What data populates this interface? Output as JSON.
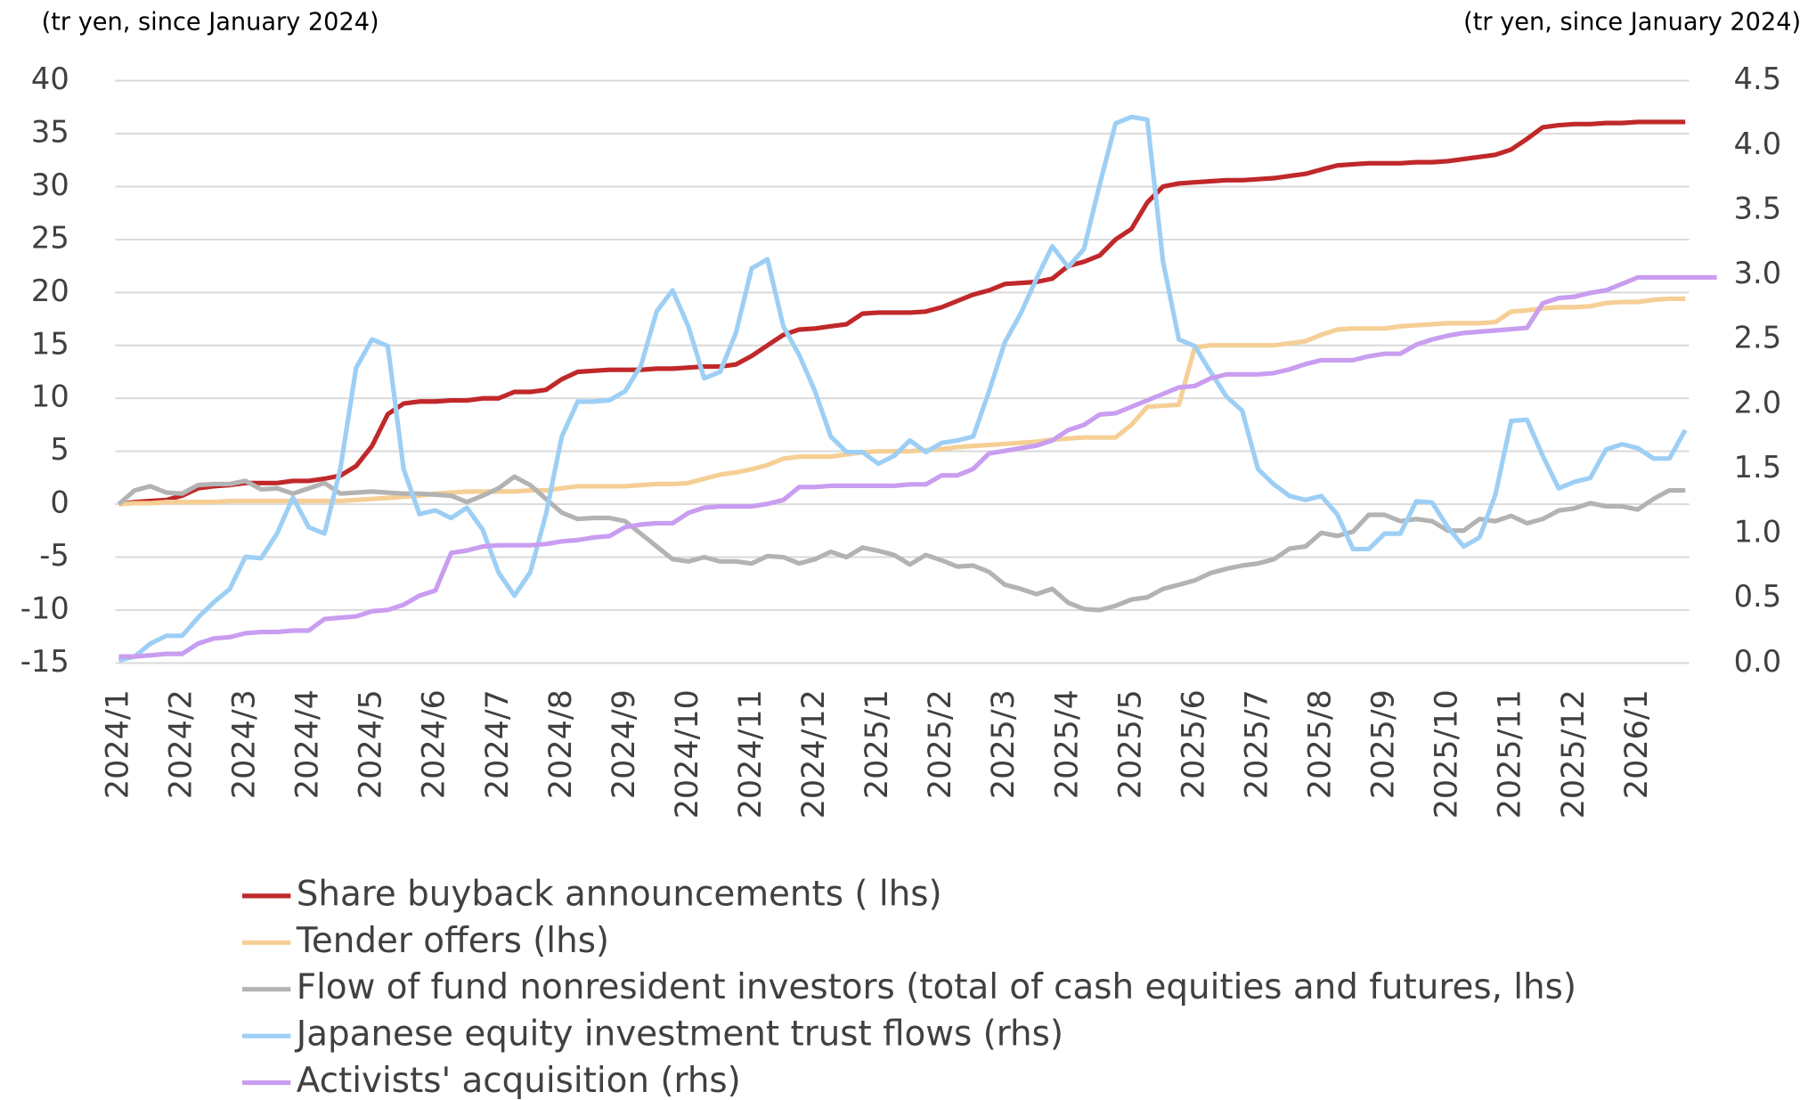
{
  "chart_data": {
    "type": "line",
    "y_label": "(tr yen, since January 2024)",
    "y2_label": "(tr yen, since January 2024)",
    "categories": [
      "2024/1",
      null,
      null,
      null,
      "2024/2",
      null,
      null,
      null,
      "2024/3",
      null,
      null,
      null,
      "2024/4",
      null,
      null,
      null,
      "2024/5",
      null,
      null,
      null,
      "2024/6",
      null,
      null,
      null,
      "2024/7",
      null,
      null,
      null,
      "2024/8",
      null,
      null,
      null,
      "2024/9",
      null,
      null,
      null,
      "2024/10",
      null,
      null,
      null,
      "2024/11",
      null,
      null,
      null,
      "2024/12",
      null,
      null,
      null,
      "2025/1",
      null,
      null,
      null,
      "2025/2",
      null,
      null,
      null,
      "2025/3",
      null,
      null,
      null,
      "2025/4",
      null,
      null,
      null,
      "2025/5",
      null,
      null,
      null,
      "2025/6",
      null,
      null,
      null,
      "2025/7",
      null,
      null,
      null,
      "2025/8",
      null,
      null,
      null,
      "2025/9",
      null,
      null,
      null,
      "2025/10",
      null,
      null,
      null,
      "2025/11",
      null,
      null,
      null,
      "2025/12",
      null,
      null,
      null,
      "2026/1",
      null,
      null,
      null,
      null,
      null
    ],
    "ylim": [
      -15,
      40
    ],
    "yticks": [
      -15,
      -10,
      -5,
      0,
      5,
      10,
      15,
      20,
      25,
      30,
      35,
      40
    ],
    "y2lim": [
      0,
      4.5
    ],
    "y2ticks": [
      {
        "value": 0,
        "label": "0.0"
      },
      0.5,
      {
        "value": 1,
        "label": "1.0"
      },
      1.5,
      {
        "value": 2,
        "label": "2.0"
      },
      2.5,
      {
        "value": 3,
        "label": "3.0"
      },
      3.5,
      {
        "value": 4,
        "label": "4.0"
      },
      4.5
    ],
    "grid": true,
    "series": [
      {
        "name": "Share buyback announcements ( lhs)",
        "color": "#c0282a",
        "values": [
          0,
          0.2,
          0.3,
          0.4,
          0.8,
          1.5,
          1.7,
          1.8,
          2.0,
          2.0,
          2.0,
          2.2,
          2.2,
          2.4,
          2.7,
          3.6,
          5.5,
          8.5,
          9.5,
          9.7,
          9.7,
          9.8,
          9.8,
          10.0,
          10.0,
          10.6,
          10.6,
          10.8,
          11.8,
          12.5,
          12.6,
          12.7,
          12.7,
          12.7,
          12.8,
          12.8,
          12.9,
          13.0,
          13.0,
          13.2,
          14.0,
          15.0,
          16.0,
          16.5,
          16.6,
          16.8,
          17.0,
          18.0,
          18.1,
          18.1,
          18.1,
          18.2,
          18.6,
          19.2,
          19.8,
          20.2,
          20.8,
          20.9,
          21.0,
          21.3,
          22.5,
          22.9,
          23.5,
          25.0,
          26.0,
          28.5,
          30.0,
          30.3,
          30.4,
          30.5,
          30.6,
          30.6,
          30.7,
          30.8,
          31.0,
          31.2,
          31.6,
          32.0,
          32.1,
          32.2,
          32.2,
          32.2,
          32.3,
          32.3,
          32.4,
          32.6,
          32.8,
          33.0,
          33.5,
          34.5,
          35.6,
          35.8,
          35.9,
          35.9,
          36.0,
          36.0,
          36.1,
          36.1,
          36.1,
          36.1,
          null,
          null
        ]
      },
      {
        "name": "Tender offers (lhs)",
        "color": "#f5cf95",
        "values": [
          0,
          0.1,
          0.1,
          0.2,
          0.2,
          0.2,
          0.2,
          0.3,
          0.3,
          0.3,
          0.3,
          0.3,
          0.3,
          0.3,
          0.3,
          0.4,
          0.5,
          0.6,
          0.7,
          0.8,
          1.0,
          1.1,
          1.2,
          1.2,
          1.2,
          1.2,
          1.3,
          1.3,
          1.5,
          1.7,
          1.7,
          1.7,
          1.7,
          1.8,
          1.9,
          1.9,
          2.0,
          2.4,
          2.8,
          3.0,
          3.3,
          3.7,
          4.3,
          4.5,
          4.5,
          4.5,
          4.7,
          4.9,
          5.0,
          5.0,
          5.0,
          5.1,
          5.2,
          5.4,
          5.5,
          5.6,
          5.7,
          5.8,
          5.9,
          6.1,
          6.2,
          6.3,
          6.3,
          6.3,
          7.5,
          9.2,
          9.3,
          9.4,
          14.8,
          15.0,
          15.0,
          15.0,
          15.0,
          15.0,
          15.2,
          15.4,
          16.0,
          16.5,
          16.6,
          16.6,
          16.6,
          16.8,
          16.9,
          17.0,
          17.1,
          17.1,
          17.1,
          17.2,
          18.2,
          18.3,
          18.5,
          18.6,
          18.6,
          18.7,
          19.0,
          19.1,
          19.1,
          19.3,
          19.4,
          19.4,
          null,
          null
        ]
      },
      {
        "name": "Flow of fund nonresident investors (total of cash equities and futures, lhs)",
        "color": "#b3b3b3",
        "values": [
          0,
          1.3,
          1.7,
          1.1,
          1.0,
          1.8,
          1.9,
          1.9,
          2.2,
          1.4,
          1.5,
          1.0,
          1.5,
          2.0,
          1.0,
          1.1,
          1.2,
          1.1,
          1.0,
          1.0,
          0.9,
          0.8,
          0.2,
          0.8,
          1.5,
          2.6,
          1.8,
          0.5,
          -0.8,
          -1.4,
          -1.3,
          -1.3,
          -1.6,
          -2.8,
          -4.0,
          -5.2,
          -5.4,
          -5.0,
          -5.4,
          -5.4,
          -5.6,
          -4.9,
          -5.0,
          -5.6,
          -5.2,
          -4.5,
          -5.0,
          -4.1,
          -4.4,
          -4.8,
          -5.7,
          -4.8,
          -5.3,
          -5.9,
          -5.8,
          -6.4,
          -7.6,
          -8.0,
          -8.5,
          -8.0,
          -9.3,
          -9.9,
          -10.0,
          -9.6,
          -9.0,
          -8.8,
          -8.0,
          -7.6,
          -7.2,
          -6.5,
          -6.1,
          -5.8,
          -5.6,
          -5.2,
          -4.2,
          -4.0,
          -2.7,
          -3.0,
          -2.6,
          -1.0,
          -1.0,
          -1.6,
          -1.4,
          -1.6,
          -2.5,
          -2.5,
          -1.4,
          -1.6,
          -1.1,
          -1.8,
          -1.4,
          -0.6,
          -0.4,
          0.1,
          -0.2,
          -0.2,
          -0.5,
          0.5,
          1.3,
          1.3,
          null,
          null
        ]
      },
      {
        "name": "Japanese equity investment trust flows (rhs)",
        "color": "#9dcff5",
        "axis": "y2",
        "values": [
          0.02,
          0.05,
          0.15,
          0.21,
          0.21,
          0.35,
          0.47,
          0.57,
          0.82,
          0.81,
          1.0,
          1.28,
          1.05,
          1.0,
          1.5,
          2.28,
          2.5,
          2.45,
          1.5,
          1.15,
          1.18,
          1.12,
          1.2,
          1.03,
          0.7,
          0.52,
          0.7,
          1.15,
          1.75,
          2.02,
          2.02,
          2.03,
          2.1,
          2.3,
          2.72,
          2.88,
          2.6,
          2.2,
          2.25,
          2.55,
          3.05,
          3.12,
          2.6,
          2.38,
          2.1,
          1.75,
          1.63,
          1.63,
          1.54,
          1.6,
          1.72,
          1.63,
          1.7,
          1.72,
          1.75,
          2.1,
          2.48,
          2.7,
          2.97,
          3.22,
          3.06,
          3.2,
          3.7,
          4.17,
          4.22,
          4.2,
          3.1,
          2.5,
          2.45,
          2.25,
          2.06,
          1.95,
          1.5,
          1.38,
          1.29,
          1.26,
          1.29,
          1.15,
          0.88,
          0.88,
          1.0,
          1.0,
          1.25,
          1.24,
          1.05,
          0.9,
          0.97,
          1.3,
          1.87,
          1.88,
          1.6,
          1.35,
          1.4,
          1.43,
          1.65,
          1.69,
          1.66,
          1.58,
          1.58,
          1.8,
          null,
          null
        ]
      },
      {
        "name": "Activists' acquisition (rhs)",
        "color": "#c99df0",
        "axis": "y2",
        "values": [
          0.05,
          0.05,
          0.06,
          0.07,
          0.07,
          0.15,
          0.19,
          0.2,
          0.23,
          0.24,
          0.24,
          0.25,
          0.25,
          0.34,
          0.35,
          0.36,
          0.4,
          0.41,
          0.45,
          0.52,
          0.56,
          0.85,
          0.87,
          0.9,
          0.91,
          0.91,
          0.91,
          0.92,
          0.94,
          0.95,
          0.97,
          0.98,
          1.05,
          1.07,
          1.08,
          1.08,
          1.16,
          1.2,
          1.21,
          1.21,
          1.21,
          1.23,
          1.26,
          1.36,
          1.36,
          1.37,
          1.37,
          1.37,
          1.37,
          1.37,
          1.38,
          1.38,
          1.45,
          1.45,
          1.5,
          1.62,
          1.64,
          1.66,
          1.68,
          1.72,
          1.8,
          1.84,
          1.92,
          1.93,
          1.98,
          2.03,
          2.08,
          2.13,
          2.14,
          2.2,
          2.23,
          2.23,
          2.23,
          2.24,
          2.27,
          2.31,
          2.34,
          2.34,
          2.34,
          2.37,
          2.39,
          2.39,
          2.46,
          2.5,
          2.53,
          2.55,
          2.56,
          2.57,
          2.58,
          2.59,
          2.78,
          2.82,
          2.83,
          2.86,
          2.88,
          2.93,
          2.98,
          2.98,
          2.98,
          2.98,
          2.98,
          2.98
        ]
      }
    ]
  }
}
